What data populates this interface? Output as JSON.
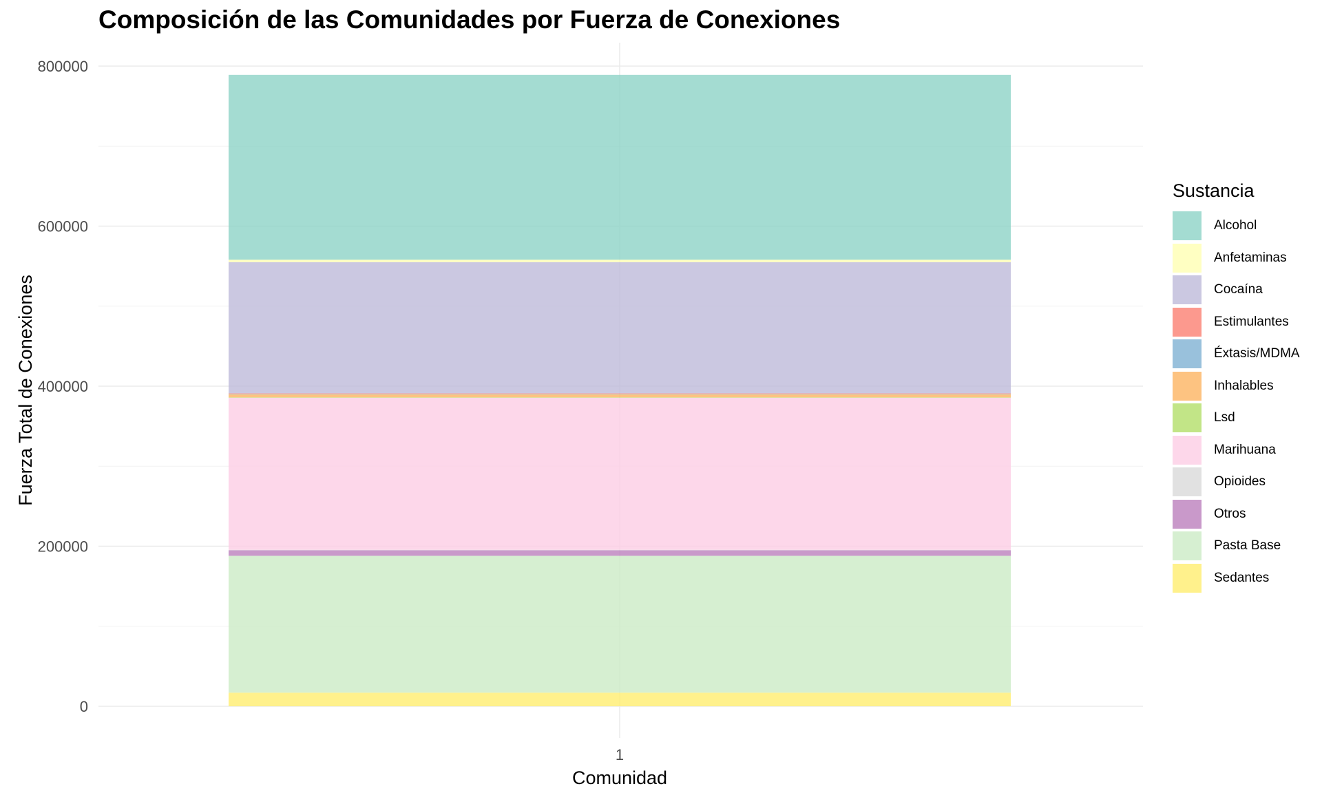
{
  "chart_data": {
    "type": "bar",
    "stacked": true,
    "title": "Composición de las Comunidades por Fuerza de Conexiones",
    "xlabel": "Comunidad",
    "ylabel": "Fuerza Total de Conexiones",
    "categories": [
      "1"
    ],
    "ylim": [
      0,
      800000
    ],
    "yticks": [
      0,
      200000,
      400000,
      600000,
      800000
    ],
    "yticks_labels": [
      "0",
      "200000",
      "400000",
      "600000",
      "800000"
    ],
    "grid": true,
    "legend_title": "Sustancia",
    "legend_position": "right",
    "series": [
      {
        "name": "Alcohol",
        "color": "#8dd3c7",
        "values": [
          231000
        ]
      },
      {
        "name": "Anfetaminas",
        "color": "#ffffb3",
        "values": [
          3000
        ]
      },
      {
        "name": "Cocaína",
        "color": "#bebada",
        "values": [
          164000
        ]
      },
      {
        "name": "Estimulantes",
        "color": "#fb8072",
        "values": [
          500
        ]
      },
      {
        "name": "Éxtasis/MDMA",
        "color": "#80b1d3",
        "values": [
          500
        ]
      },
      {
        "name": "Inhalables",
        "color": "#fdb462",
        "values": [
          4000
        ]
      },
      {
        "name": "Lsd",
        "color": "#b3de69",
        "values": [
          500
        ]
      },
      {
        "name": "Marihuana",
        "color": "#fccde5",
        "values": [
          190000
        ]
      },
      {
        "name": "Opioides",
        "color": "#d9d9d9",
        "values": [
          500
        ]
      },
      {
        "name": "Otros",
        "color": "#bc80bd",
        "values": [
          7000
        ]
      },
      {
        "name": "Pasta Base",
        "color": "#ccebc5",
        "values": [
          171000
        ]
      },
      {
        "name": "Sedantes",
        "color": "#ffed6f",
        "values": [
          17000
        ]
      }
    ]
  }
}
